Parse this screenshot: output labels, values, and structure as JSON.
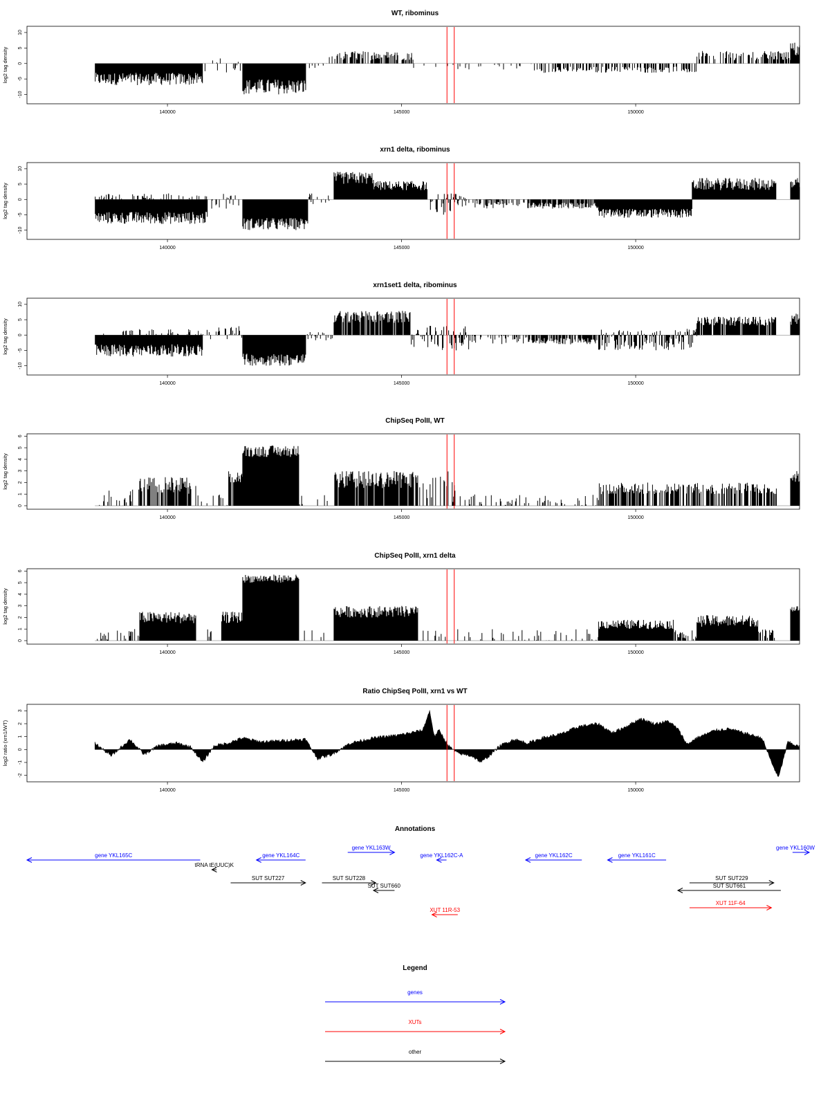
{
  "colors": {
    "gene": "#0000ff",
    "xut": "#ff0000",
    "other": "#000000",
    "marker": "#ff0000",
    "signal": "#000000"
  },
  "x_range": [
    137000,
    153500
  ],
  "markers": [
    145970,
    146125
  ],
  "chart_data": [
    {
      "type": "bar",
      "title": "WT, ribominus",
      "ylabel": "log2 tag density",
      "ylim": [
        -13,
        12
      ],
      "yticks": [
        -10,
        -5,
        0,
        5,
        10
      ],
      "xticks": [
        140000,
        145000,
        150000
      ],
      "grid": false,
      "segments": [
        {
          "x": [
            138450,
            140750
          ],
          "y": [
            -7,
            -3
          ],
          "fill": 1.0
        },
        {
          "x": [
            140750,
            141600
          ],
          "y": [
            -3,
            2
          ],
          "fill": 0.15
        },
        {
          "x": [
            141600,
            142950
          ],
          "y": [
            -10,
            -5
          ],
          "fill": 1.0
        },
        {
          "x": [
            142950,
            143450
          ],
          "y": [
            -2,
            0
          ],
          "fill": 0.3
        },
        {
          "x": [
            143450,
            145250
          ],
          "y": [
            1,
            4
          ],
          "fill": 0.55
        },
        {
          "x": [
            145250,
            147800
          ],
          "y": [
            -2,
            0
          ],
          "fill": 0.12
        },
        {
          "x": [
            147800,
            149200
          ],
          "y": [
            -3,
            -1
          ],
          "fill": 0.5
        },
        {
          "x": [
            149200,
            151300
          ],
          "y": [
            -3,
            -1
          ],
          "fill": 0.45
        },
        {
          "x": [
            151300,
            153300
          ],
          "y": [
            1,
            4
          ],
          "fill": 0.45
        },
        {
          "x": [
            153300,
            153500
          ],
          "y": [
            2,
            7
          ],
          "fill": 1.0
        }
      ]
    },
    {
      "type": "bar",
      "title": "xrn1 delta, ribominus",
      "ylabel": "log2 tag density",
      "ylim": [
        -13,
        12
      ],
      "yticks": [
        -10,
        -5,
        0,
        5,
        10
      ],
      "xticks": [
        140000,
        145000,
        150000
      ],
      "grid": false,
      "segments": [
        {
          "x": [
            138450,
            140850
          ],
          "y": [
            -8,
            -4
          ],
          "fill": 1.0
        },
        {
          "x": [
            138450,
            140850
          ],
          "y": [
            0,
            2
          ],
          "fill": 0.25
        },
        {
          "x": [
            140850,
            141600
          ],
          "y": [
            -3,
            2
          ],
          "fill": 0.3
        },
        {
          "x": [
            141600,
            143000
          ],
          "y": [
            -10,
            -6
          ],
          "fill": 1.0
        },
        {
          "x": [
            143000,
            143550
          ],
          "y": [
            -2,
            2
          ],
          "fill": 0.4
        },
        {
          "x": [
            143550,
            144400
          ],
          "y": [
            5,
            9
          ],
          "fill": 1.0
        },
        {
          "x": [
            144400,
            145550
          ],
          "y": [
            3,
            6
          ],
          "fill": 1.0
        },
        {
          "x": [
            145550,
            146400
          ],
          "y": [
            -5,
            2
          ],
          "fill": 0.7
        },
        {
          "x": [
            146400,
            147700
          ],
          "y": [
            -3,
            0
          ],
          "fill": 0.5
        },
        {
          "x": [
            147700,
            149200
          ],
          "y": [
            -3,
            -1
          ],
          "fill": 0.8
        },
        {
          "x": [
            149200,
            151200
          ],
          "y": [
            -6,
            -3
          ],
          "fill": 1.0
        },
        {
          "x": [
            151200,
            153000
          ],
          "y": [
            3,
            7
          ],
          "fill": 1.0
        },
        {
          "x": [
            153300,
            153500
          ],
          "y": [
            3,
            7
          ],
          "fill": 1.0
        }
      ]
    },
    {
      "type": "bar",
      "title": "xrn1set1 delta, ribominus",
      "ylabel": "log2 tag density",
      "ylim": [
        -13,
        12
      ],
      "yticks": [
        -10,
        -5,
        0,
        5,
        10
      ],
      "xticks": [
        140000,
        145000,
        150000
      ],
      "grid": false,
      "segments": [
        {
          "x": [
            138450,
            140750
          ],
          "y": [
            -7,
            -3
          ],
          "fill": 1.0
        },
        {
          "x": [
            138450,
            140750
          ],
          "y": [
            0,
            2
          ],
          "fill": 0.2
        },
        {
          "x": [
            140750,
            141600
          ],
          "y": [
            -2,
            3
          ],
          "fill": 0.3
        },
        {
          "x": [
            141600,
            142950
          ],
          "y": [
            -10,
            -6
          ],
          "fill": 1.0
        },
        {
          "x": [
            142950,
            143550
          ],
          "y": [
            -2,
            1
          ],
          "fill": 0.35
        },
        {
          "x": [
            143550,
            145200
          ],
          "y": [
            4,
            8
          ],
          "fill": 0.9
        },
        {
          "x": [
            145200,
            146500
          ],
          "y": [
            -5,
            3
          ],
          "fill": 0.6
        },
        {
          "x": [
            146500,
            147700
          ],
          "y": [
            -3,
            0
          ],
          "fill": 0.4
        },
        {
          "x": [
            147700,
            149200
          ],
          "y": [
            -3,
            -1
          ],
          "fill": 0.7
        },
        {
          "x": [
            149200,
            151300
          ],
          "y": [
            -5,
            2
          ],
          "fill": 0.8
        },
        {
          "x": [
            151300,
            153000
          ],
          "y": [
            3,
            6
          ],
          "fill": 0.8
        },
        {
          "x": [
            153300,
            153500
          ],
          "y": [
            3,
            7
          ],
          "fill": 1.0
        }
      ]
    },
    {
      "type": "bar",
      "title": "ChipSeq PolII, WT",
      "ylabel": "log2 tag density",
      "ylim": [
        -0.3,
        6.2
      ],
      "yticks": [
        0,
        1,
        2,
        3,
        4,
        5,
        6
      ],
      "xticks": [
        140000,
        145000,
        150000
      ],
      "grid": false,
      "segments": [
        {
          "x": [
            138450,
            139400
          ],
          "y": [
            0,
            1.5
          ],
          "fill": 0.25
        },
        {
          "x": [
            139400,
            140600
          ],
          "y": [
            1,
            2.5
          ],
          "fill": 0.8
        },
        {
          "x": [
            140600,
            141300
          ],
          "y": [
            0,
            1
          ],
          "fill": 0.2
        },
        {
          "x": [
            141300,
            141600
          ],
          "y": [
            2,
            3
          ],
          "fill": 0.9
        },
        {
          "x": [
            141600,
            142800
          ],
          "y": [
            4.2,
            5.2
          ],
          "fill": 1.0
        },
        {
          "x": [
            142800,
            143550
          ],
          "y": [
            0,
            1
          ],
          "fill": 0.12
        },
        {
          "x": [
            143550,
            145350
          ],
          "y": [
            1.5,
            3
          ],
          "fill": 0.9
        },
        {
          "x": [
            145350,
            146200
          ],
          "y": [
            0,
            3
          ],
          "fill": 0.3
        },
        {
          "x": [
            146200,
            149200
          ],
          "y": [
            0,
            1
          ],
          "fill": 0.2
        },
        {
          "x": [
            149200,
            153000
          ],
          "y": [
            1,
            2
          ],
          "fill": 0.6
        },
        {
          "x": [
            153300,
            153500
          ],
          "y": [
            2,
            3
          ],
          "fill": 1.0
        }
      ]
    },
    {
      "type": "bar",
      "title": "ChipSeq PolII, xrn1 delta",
      "ylabel": "log2 tag density",
      "ylim": [
        -0.3,
        6.2
      ],
      "yticks": [
        0,
        1,
        2,
        3,
        4,
        5,
        6
      ],
      "xticks": [
        140000,
        145000,
        150000
      ],
      "grid": false,
      "segments": [
        {
          "x": [
            138450,
            139400
          ],
          "y": [
            0,
            1
          ],
          "fill": 0.3
        },
        {
          "x": [
            139400,
            140600
          ],
          "y": [
            1.5,
            2.5
          ],
          "fill": 1.0
        },
        {
          "x": [
            140600,
            141150
          ],
          "y": [
            0,
            1
          ],
          "fill": 0.2
        },
        {
          "x": [
            141150,
            141600
          ],
          "y": [
            1.5,
            2.5
          ],
          "fill": 1.0
        },
        {
          "x": [
            141600,
            142800
          ],
          "y": [
            5,
            5.7
          ],
          "fill": 1.0
        },
        {
          "x": [
            142800,
            143550
          ],
          "y": [
            0,
            1
          ],
          "fill": 0.15
        },
        {
          "x": [
            143550,
            145350
          ],
          "y": [
            2,
            3
          ],
          "fill": 1.0
        },
        {
          "x": [
            145350,
            149200
          ],
          "y": [
            0,
            1
          ],
          "fill": 0.2
        },
        {
          "x": [
            149200,
            150800
          ],
          "y": [
            1,
            1.8
          ],
          "fill": 1.0
        },
        {
          "x": [
            150800,
            151300
          ],
          "y": [
            0,
            1
          ],
          "fill": 0.5
        },
        {
          "x": [
            151300,
            152600
          ],
          "y": [
            1.2,
            2.2
          ],
          "fill": 1.0
        },
        {
          "x": [
            152600,
            153000
          ],
          "y": [
            0,
            1
          ],
          "fill": 0.5
        },
        {
          "x": [
            153300,
            153500
          ],
          "y": [
            2.5,
            3
          ],
          "fill": 1.0
        }
      ]
    },
    {
      "type": "area",
      "title": "Ratio ChipSeq PolII, xrn1 vs WT",
      "ylabel": "log2 ratio (xrn1/WT)",
      "ylim": [
        -2.5,
        3.5
      ],
      "yticks": [
        -2,
        -1,
        0,
        1,
        2,
        3
      ],
      "xticks": [
        140000,
        145000,
        150000
      ],
      "grid": false,
      "x": [
        138450,
        138800,
        139200,
        139500,
        139800,
        140200,
        140500,
        140750,
        141000,
        141300,
        141600,
        142000,
        142500,
        142950,
        143200,
        143500,
        143900,
        144400,
        144900,
        145200,
        145450,
        145600,
        145700,
        145800,
        146000,
        146200,
        146500,
        146700,
        146900,
        147100,
        147400,
        147700,
        148000,
        148400,
        148800,
        149200,
        149500,
        149800,
        150100,
        150400,
        150700,
        150900,
        151100,
        151300,
        151700,
        152000,
        152400,
        152700,
        152900,
        153050,
        153250,
        153500
      ],
      "y": [
        0.5,
        -0.5,
        0.8,
        -0.4,
        0.3,
        0.5,
        0.2,
        -1.0,
        0.3,
        0.5,
        0.9,
        0.6,
        0.7,
        0.8,
        -0.7,
        -0.4,
        0.5,
        0.9,
        1.1,
        1.3,
        1.5,
        3.0,
        1.0,
        1.5,
        0.3,
        -0.3,
        -0.5,
        -1.0,
        -0.4,
        0.3,
        0.8,
        0.5,
        0.9,
        1.2,
        1.8,
        2.0,
        1.3,
        1.8,
        2.4,
        2.0,
        2.2,
        1.6,
        0.4,
        0.9,
        1.5,
        1.6,
        1.2,
        0.9,
        -1.0,
        -2.2,
        0.6,
        0.2
      ]
    }
  ],
  "annotations": {
    "title": "Annotations",
    "items": [
      {
        "label": "gene YKL165C",
        "start": 140700,
        "end": 137000,
        "row": 0,
        "kind": "gene"
      },
      {
        "label": "gene YKL164C",
        "start": 142950,
        "end": 141900,
        "row": 0,
        "kind": "gene"
      },
      {
        "label": "gene YKL163W",
        "start": 143850,
        "end": 144850,
        "row": -1,
        "kind": "gene"
      },
      {
        "label": "gene YKL162C-A",
        "start": 145960,
        "end": 145750,
        "row": 0,
        "kind": "gene"
      },
      {
        "label": "gene YKL162C",
        "start": 148850,
        "end": 147650,
        "row": 0,
        "kind": "gene"
      },
      {
        "label": "gene YKL161C",
        "start": 150650,
        "end": 149400,
        "row": 0,
        "kind": "gene"
      },
      {
        "label": "gene YKL160W",
        "start": 153350,
        "end": 153850,
        "row": -1,
        "kind": "gene"
      },
      {
        "label": "tRNA tE(UUC)K",
        "start": 141050,
        "end": 140950,
        "row": 1,
        "kind": "other"
      },
      {
        "label": "SUT SUT227",
        "start": 141350,
        "end": 142950,
        "row": 2,
        "kind": "other"
      },
      {
        "label": "SUT SUT228",
        "start": 143300,
        "end": 144450,
        "row": 2,
        "kind": "other"
      },
      {
        "label": "SUT SUT660",
        "start": 144850,
        "end": 144400,
        "row": 3,
        "kind": "other"
      },
      {
        "label": "SUT SUT229",
        "start": 151150,
        "end": 152950,
        "row": 2,
        "kind": "other"
      },
      {
        "label": "SUT SUT661",
        "start": 153100,
        "end": 150900,
        "row": 3,
        "kind": "other"
      },
      {
        "label": "XUT 11R-53",
        "start": 146200,
        "end": 145650,
        "row": 5,
        "kind": "xut"
      },
      {
        "label": "XUT 11F-64",
        "start": 151150,
        "end": 152900,
        "row": 4,
        "kind": "xut"
      }
    ]
  },
  "legend": {
    "title": "Legend",
    "items": [
      {
        "label": "genes",
        "kind": "gene"
      },
      {
        "label": "XUTs",
        "kind": "xut"
      },
      {
        "label": "other",
        "kind": "other"
      }
    ]
  }
}
